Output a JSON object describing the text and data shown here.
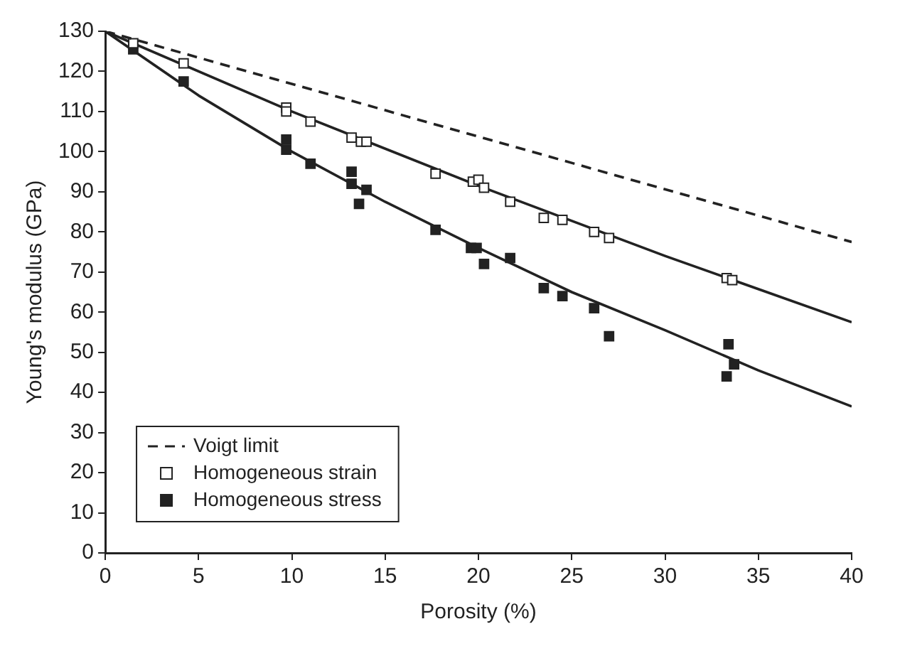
{
  "chart_data": {
    "type": "scatter",
    "xlabel": "Porosity (%)",
    "ylabel": "Young's modulus (GPa)",
    "xlim": [
      0,
      40
    ],
    "ylim": [
      0,
      130
    ],
    "xticks": [
      0,
      5,
      10,
      15,
      20,
      25,
      30,
      35,
      40
    ],
    "yticks": [
      0,
      10,
      20,
      30,
      40,
      50,
      60,
      70,
      80,
      90,
      100,
      110,
      120,
      130
    ],
    "grid": false,
    "legend": "bottom left",
    "series": [
      {
        "name": "Voigt limit",
        "type": "line",
        "line_style": "dashed",
        "marker": "none",
        "color": "#222222",
        "x": [
          0,
          40
        ],
        "values": [
          130,
          77.5
        ]
      },
      {
        "name": "Homogeneous strain",
        "marker": "square",
        "color": "#ffffff",
        "x": [
          1.5,
          4.2,
          9.7,
          9.7,
          11,
          13.2,
          13.7,
          14,
          17.7,
          19.7,
          20,
          20.3,
          21.7,
          23.5,
          24.5,
          26.2,
          27,
          33.3,
          33.6
        ],
        "values": [
          127,
          122,
          111,
          110,
          107.5,
          103.5,
          102.5,
          102.5,
          94.5,
          92.5,
          93,
          91,
          87.5,
          83.5,
          83,
          80,
          78.5,
          68.5,
          68
        ]
      },
      {
        "name": "Homogeneous stress",
        "marker": "square",
        "color": "#222222",
        "x": [
          1.5,
          4.2,
          9.7,
          9.7,
          11,
          13.2,
          13.2,
          13.6,
          14,
          17.7,
          19.6,
          19.9,
          20.3,
          21.7,
          23.5,
          24.5,
          26.2,
          27,
          33.3,
          33.4,
          33.7
        ],
        "values": [
          125.5,
          117.5,
          103,
          100.5,
          97,
          95,
          92,
          87,
          90.5,
          80.5,
          76,
          76,
          72,
          73.5,
          66,
          64,
          61,
          54,
          44,
          52,
          47
        ]
      },
      {
        "type": "line",
        "line_style": "solid",
        "marker": "none",
        "color": "#222222",
        "x": [
          0,
          10,
          20,
          30,
          40
        ],
        "values": [
          130,
          110,
          91.5,
          74,
          57.5
        ]
      },
      {
        "type": "line",
        "line_style": "solid",
        "marker": "none",
        "color": "#222222",
        "x": [
          0,
          5,
          10,
          15,
          20,
          25,
          30,
          35,
          40
        ],
        "values": [
          130,
          114,
          100,
          87.5,
          76,
          65,
          55.5,
          45.5,
          36.5
        ]
      }
    ]
  }
}
